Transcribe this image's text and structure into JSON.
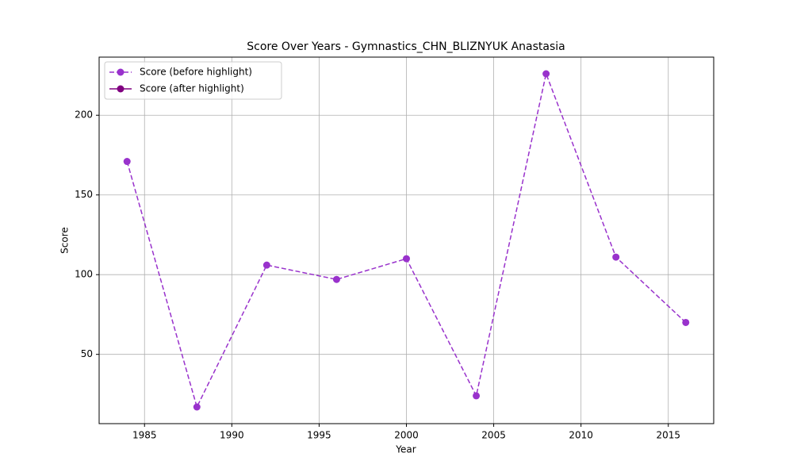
{
  "chart_data": {
    "type": "line",
    "title": "Score Over Years - Gymnastics_CHN_BLIZNYUK Anastasia",
    "xlabel": "Year",
    "ylabel": "Score",
    "x": [
      1984,
      1988,
      1992,
      1996,
      2000,
      2004,
      2008,
      2012,
      2016
    ],
    "series": [
      {
        "name": "Score (before highlight)",
        "color": "#9932cc",
        "linestyle": "dashed",
        "values": [
          171,
          17,
          106,
          97,
          110,
          24,
          226,
          111,
          70
        ]
      },
      {
        "name": "Score (after highlight)",
        "color": "#800080",
        "linestyle": "solid",
        "values": [
          null,
          null,
          null,
          null,
          null,
          null,
          null,
          null,
          null
        ]
      }
    ],
    "xlim": [
      1982.4,
      2017.6
    ],
    "xticks": [
      1985,
      1990,
      1995,
      2000,
      2005,
      2010,
      2015
    ],
    "ylim": [
      6.55,
      236.45
    ],
    "yticks": [
      50,
      100,
      150,
      200
    ],
    "grid": true,
    "legend": "upper left"
  }
}
